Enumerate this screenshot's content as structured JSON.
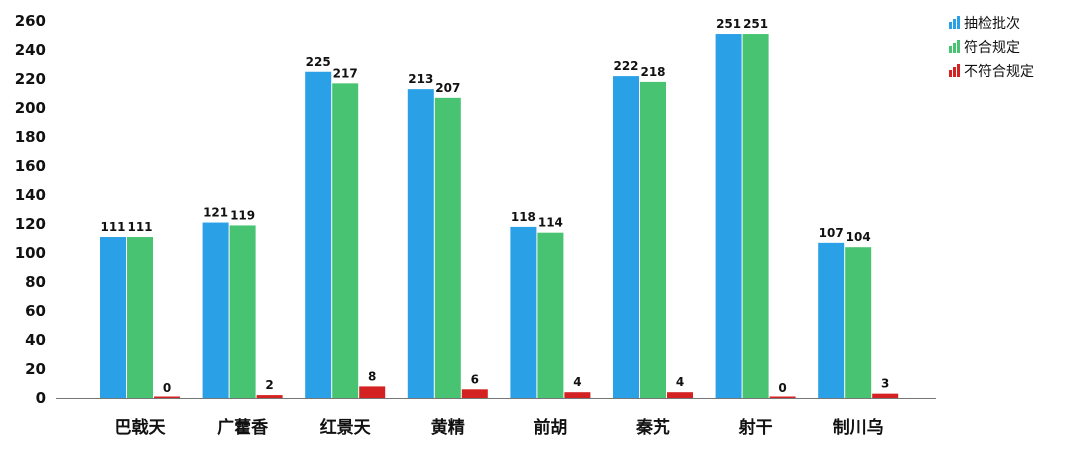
{
  "chart_data": {
    "type": "bar",
    "title": "",
    "xlabel": "",
    "ylabel": "",
    "ylim": [
      0,
      260
    ],
    "yticks": [
      0,
      20,
      40,
      60,
      80,
      100,
      120,
      140,
      160,
      180,
      200,
      220,
      240,
      260
    ],
    "grid": false,
    "legend_position": "top-right",
    "categories": [
      "巴戟天",
      "广藿香",
      "红景天",
      "黄精",
      "前胡",
      "秦艽",
      "射干",
      "制川乌"
    ],
    "series": [
      {
        "name": "抽检批次",
        "color": "#2aa0e6",
        "values": [
          111,
          121,
          225,
          213,
          118,
          222,
          251,
          107
        ]
      },
      {
        "name": "符合规定",
        "color": "#47c371",
        "values": [
          111,
          119,
          217,
          207,
          114,
          218,
          251,
          104
        ]
      },
      {
        "name": "不符合规定",
        "color": "#d42222",
        "values": [
          0,
          2,
          8,
          6,
          4,
          4,
          0,
          3
        ]
      }
    ]
  }
}
